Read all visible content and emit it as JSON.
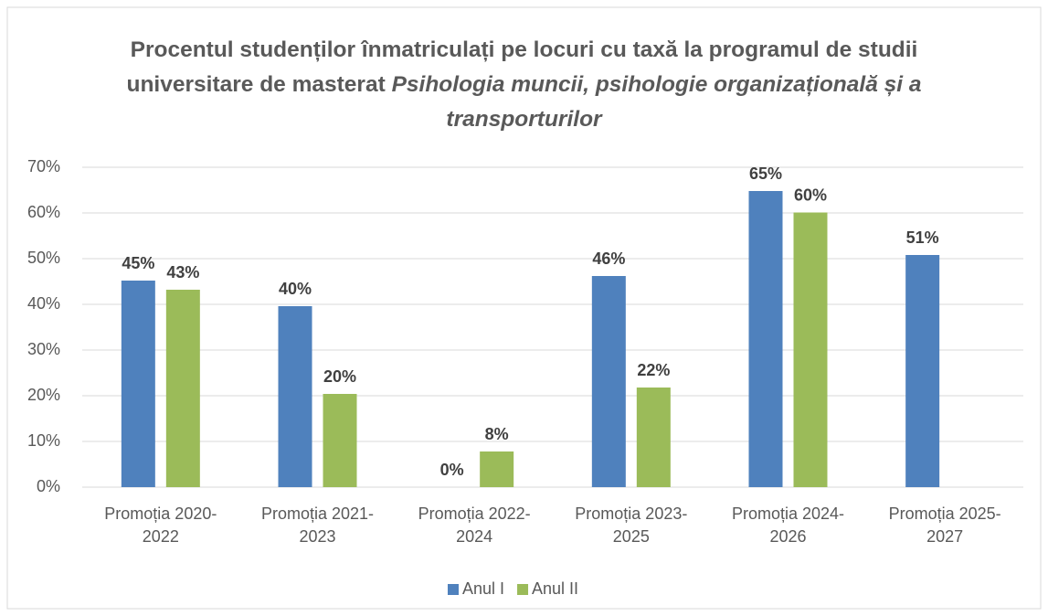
{
  "chart_data": {
    "type": "bar",
    "title": "Procentul studenților înmatriculați pe locuri cu taxă la programul de studii universitare de masterat",
    "title_italic": "Psihologia muncii, psihologie organizațională și a transporturilor",
    "categories": [
      "Promoția 2020-2022",
      "Promoția 2021-2023",
      "Promoția 2022-2024",
      "Promoția 2023-2025",
      "Promoția 2024-2026",
      "Promoția 2025-2027"
    ],
    "series": [
      {
        "name": "Anul I",
        "color": "#4f81bd",
        "values": [
          45.2,
          39.6,
          0,
          46.2,
          64.8,
          50.8
        ],
        "value_labels": [
          "45%",
          "40%",
          "0%",
          "46%",
          "65%",
          "51%"
        ]
      },
      {
        "name": "Anul II",
        "color": "#9bbb59",
        "values": [
          43.2,
          20.4,
          7.8,
          21.8,
          60.1,
          null
        ],
        "value_labels": [
          "43%",
          "20%",
          "8%",
          "22%",
          "60%",
          null
        ]
      }
    ],
    "ylim": [
      0,
      70
    ],
    "yticks": [
      {
        "value": 0,
        "label": "0%"
      },
      {
        "value": 10,
        "label": "10%"
      },
      {
        "value": 20,
        "label": "20%"
      },
      {
        "value": 30,
        "label": "30%"
      },
      {
        "value": 40,
        "label": "40%"
      },
      {
        "value": 50,
        "label": "50%"
      },
      {
        "value": 60,
        "label": "60%"
      },
      {
        "value": 70,
        "label": "70%"
      }
    ],
    "grid": true,
    "legend": "bottom"
  }
}
